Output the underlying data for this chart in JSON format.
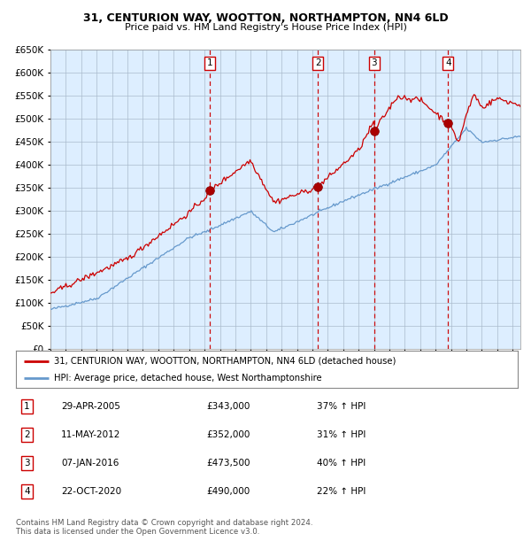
{
  "title": "31, CENTURION WAY, WOOTTON, NORTHAMPTON, NN4 6LD",
  "subtitle": "Price paid vs. HM Land Registry's House Price Index (HPI)",
  "legend_line1": "31, CENTURION WAY, WOOTTON, NORTHAMPTON, NN4 6LD (detached house)",
  "legend_line2": "HPI: Average price, detached house, West Northamptonshire",
  "footer1": "Contains HM Land Registry data © Crown copyright and database right 2024.",
  "footer2": "This data is licensed under the Open Government Licence v3.0.",
  "sale_events": [
    {
      "num": 1,
      "date": "29-APR-2005",
      "price": "£343,000",
      "pct": "37% ↑ HPI"
    },
    {
      "num": 2,
      "date": "11-MAY-2012",
      "price": "£352,000",
      "pct": "31% ↑ HPI"
    },
    {
      "num": 3,
      "date": "07-JAN-2016",
      "price": "£473,500",
      "pct": "40% ↑ HPI"
    },
    {
      "num": 4,
      "date": "22-OCT-2020",
      "price": "£490,000",
      "pct": "22% ↑ HPI"
    }
  ],
  "sale_dates_decimal": [
    2005.33,
    2012.37,
    2016.02,
    2020.81
  ],
  "sale_prices": [
    343000,
    352000,
    473500,
    490000
  ],
  "hpi_color": "#6699cc",
  "price_color": "#cc0000",
  "background_plot": "#ddeeff",
  "background_fig": "#ffffff",
  "grid_color": "#aabbcc",
  "vline_color": "#cc0000",
  "ylim": [
    0,
    650000
  ],
  "xlim_start": 1995.0,
  "xlim_end": 2025.5,
  "title_fontsize": 9,
  "subtitle_fontsize": 8
}
